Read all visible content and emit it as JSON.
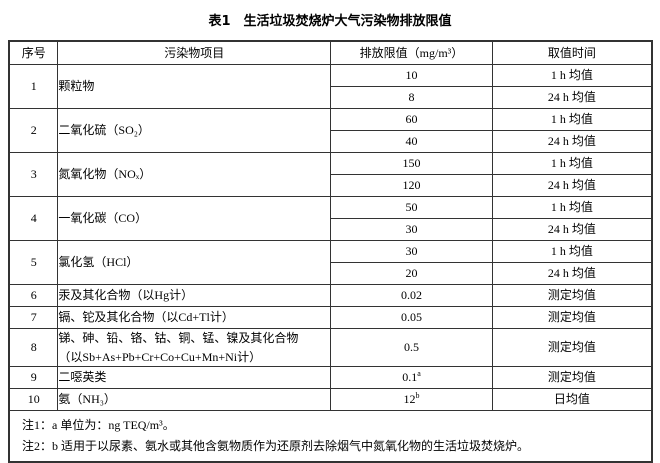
{
  "title": "表1　生活垃圾焚烧炉大气污染物排放限值",
  "headers": {
    "no": "序号",
    "item": "污染物项目",
    "limit": "排放限值（mg/m³）",
    "time": "取值时间"
  },
  "rows": [
    {
      "no": "1",
      "item": "颗粒物",
      "limits": [
        {
          "value": "10",
          "time": "1 h 均值"
        },
        {
          "value": "8",
          "time": "24 h 均值"
        }
      ]
    },
    {
      "no": "2",
      "item": "二氧化硫（SO₂）",
      "limits": [
        {
          "value": "60",
          "time": "1 h 均值"
        },
        {
          "value": "40",
          "time": "24 h 均值"
        }
      ]
    },
    {
      "no": "3",
      "item": "氮氧化物（NOₓ）",
      "limits": [
        {
          "value": "150",
          "time": "1 h 均值"
        },
        {
          "value": "120",
          "time": "24 h 均值"
        }
      ]
    },
    {
      "no": "4",
      "item": "一氧化碳（CO）",
      "limits": [
        {
          "value": "50",
          "time": "1 h 均值"
        },
        {
          "value": "30",
          "time": "24 h 均值"
        }
      ]
    },
    {
      "no": "5",
      "item": "氯化氢（HCl）",
      "limits": [
        {
          "value": "30",
          "time": "1 h 均值"
        },
        {
          "value": "20",
          "time": "24 h 均值"
        }
      ]
    },
    {
      "no": "6",
      "item": "汞及其化合物（以Hg计）",
      "value": "0.02",
      "time": "测定均值"
    },
    {
      "no": "7",
      "item": "镉、铊及其化合物（以Cd+Tl计）",
      "value": "0.05",
      "time": "测定均值"
    },
    {
      "no": "8",
      "item": "锑、砷、铅、铬、钴、铜、锰、镍及其化合物",
      "item2": "（以Sb+As+Pb+Cr+Co+Cu+Mn+Ni计）",
      "value": "0.5",
      "time": "测定均值"
    },
    {
      "no": "9",
      "item": "二噁英类",
      "value": "0.1",
      "sup": "a",
      "time": "测定均值"
    },
    {
      "no": "10",
      "item": "氨（NH₃）",
      "value": "12",
      "sup": "b",
      "time": "日均值"
    }
  ],
  "notes": [
    "注1：a 单位为：ng TEQ/m³。",
    "注2：b 适用于以尿素、氨水或其他含氨物质作为还原剂去除烟气中氮氧化物的生活垃圾焚烧炉。"
  ]
}
